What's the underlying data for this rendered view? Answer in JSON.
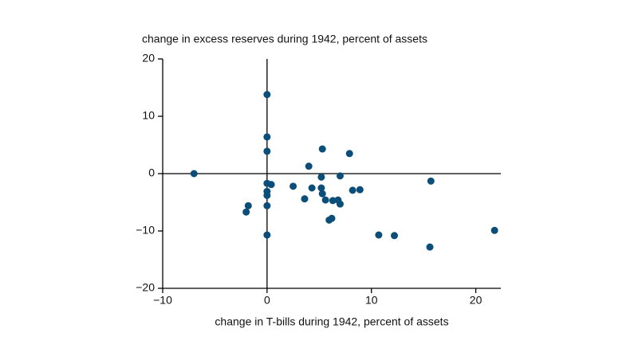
{
  "chart_data": {
    "type": "scatter",
    "y_label": "change in excess reserves during 1942, percent of assets",
    "x_label": "change in T-bills during 1942, percent of assets",
    "color": "#0c4e7a",
    "x": [
      -7.0,
      0,
      0,
      0,
      0,
      0,
      0,
      0.4,
      0,
      0,
      -1.8,
      -2.0,
      2.5,
      3.6,
      4.0,
      4.3,
      5.3,
      5.2,
      5.2,
      5.3,
      5.6,
      5.95,
      6.2,
      6.3,
      6.8,
      7.0,
      7.0,
      7.9,
      8.2,
      8.9,
      10.7,
      12.2,
      15.7,
      15.6,
      21.8
    ],
    "values": [
      0,
      13.8,
      6.4,
      3.9,
      -1.7,
      -3.1,
      -3.8,
      -1.9,
      -5.6,
      -10.7,
      -5.6,
      -6.7,
      -2.2,
      -4.4,
      1.3,
      -2.5,
      4.3,
      -0.6,
      -2.5,
      -3.5,
      -4.6,
      -8.1,
      -7.8,
      -4.7,
      -4.6,
      -5.3,
      -0.4,
      3.5,
      -2.9,
      -2.8,
      -10.7,
      -10.8,
      -1.3,
      -12.8,
      -9.9
    ],
    "xlim": [
      -10,
      22.4
    ],
    "ylim": [
      -20,
      20
    ],
    "xticks": [
      {
        "value": -10,
        "label": "−10"
      },
      0,
      10,
      20
    ],
    "yticks": [
      {
        "value": -20,
        "label": "−20"
      },
      {
        "value": -10,
        "label": "−10"
      },
      0,
      10,
      20
    ]
  }
}
